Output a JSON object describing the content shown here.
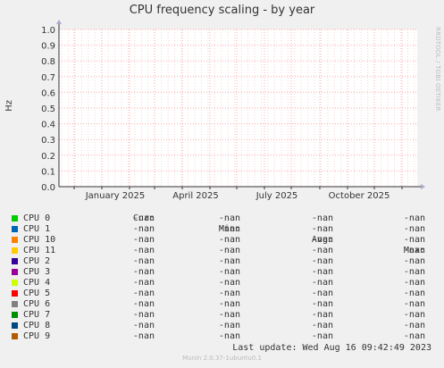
{
  "title": "CPU frequency scaling - by year",
  "side_text": "RRDTOOL / TOBI OETIKER",
  "colors": {
    "background": "#f0f0f0",
    "plot_bg": "#ffffff",
    "grid": "#ffaaaa",
    "axis": "#333333",
    "text": "#333333"
  },
  "chart_data": {
    "type": "line",
    "ylabel": "Hz",
    "xlabel": "",
    "ylim": [
      0,
      1
    ],
    "y_ticks": [
      0.0,
      0.1,
      0.2,
      0.3,
      0.4,
      0.5,
      0.6,
      0.7,
      0.8,
      0.9,
      1.0
    ],
    "y_tick_labels": [
      "0.0",
      "0.1",
      "0.2",
      "0.3",
      "0.4",
      "0.5",
      "0.6",
      "0.7",
      "0.8",
      "0.9",
      "1.0"
    ],
    "x_tick_labels": [
      "January 2025",
      "April 2025",
      "July 2025",
      "October 2025"
    ],
    "grid": true,
    "series": [
      {
        "name": "CPU 0",
        "color": "#00cc00",
        "values": []
      },
      {
        "name": "CPU 1",
        "color": "#0066b3",
        "values": []
      },
      {
        "name": "CPU 10",
        "color": "#ff8000",
        "values": []
      },
      {
        "name": "CPU 11",
        "color": "#ffcc00",
        "values": []
      },
      {
        "name": "CPU 2",
        "color": "#330099",
        "values": []
      },
      {
        "name": "CPU 3",
        "color": "#990099",
        "values": []
      },
      {
        "name": "CPU 4",
        "color": "#ccff00",
        "values": []
      },
      {
        "name": "CPU 5",
        "color": "#ff0000",
        "values": []
      },
      {
        "name": "CPU 6",
        "color": "#808080",
        "values": []
      },
      {
        "name": "CPU 7",
        "color": "#008f00",
        "values": []
      },
      {
        "name": "CPU 8",
        "color": "#00487d",
        "values": []
      },
      {
        "name": "CPU 9",
        "color": "#b35a00",
        "values": []
      }
    ]
  },
  "legend": {
    "headers": [
      "Cur:",
      "Min:",
      "Avg:",
      "Max:"
    ],
    "rows": [
      {
        "name": "CPU 0",
        "color": "#00cc00",
        "cur": "-nan",
        "min": "-nan",
        "avg": "-nan",
        "max": "-nan"
      },
      {
        "name": "CPU 1",
        "color": "#0066b3",
        "cur": "-nan",
        "min": "-nan",
        "avg": "-nan",
        "max": "-nan"
      },
      {
        "name": "CPU 10",
        "color": "#ff8000",
        "cur": "-nan",
        "min": "-nan",
        "avg": "-nan",
        "max": "-nan"
      },
      {
        "name": "CPU 11",
        "color": "#ffcc00",
        "cur": "-nan",
        "min": "-nan",
        "avg": "-nan",
        "max": "-nan"
      },
      {
        "name": "CPU 2",
        "color": "#330099",
        "cur": "-nan",
        "min": "-nan",
        "avg": "-nan",
        "max": "-nan"
      },
      {
        "name": "CPU 3",
        "color": "#990099",
        "cur": "-nan",
        "min": "-nan",
        "avg": "-nan",
        "max": "-nan"
      },
      {
        "name": "CPU 4",
        "color": "#ccff00",
        "cur": "-nan",
        "min": "-nan",
        "avg": "-nan",
        "max": "-nan"
      },
      {
        "name": "CPU 5",
        "color": "#ff0000",
        "cur": "-nan",
        "min": "-nan",
        "avg": "-nan",
        "max": "-nan"
      },
      {
        "name": "CPU 6",
        "color": "#808080",
        "cur": "-nan",
        "min": "-nan",
        "avg": "-nan",
        "max": "-nan"
      },
      {
        "name": "CPU 7",
        "color": "#008f00",
        "cur": "-nan",
        "min": "-nan",
        "avg": "-nan",
        "max": "-nan"
      },
      {
        "name": "CPU 8",
        "color": "#00487d",
        "cur": "-nan",
        "min": "-nan",
        "avg": "-nan",
        "max": "-nan"
      },
      {
        "name": "CPU 9",
        "color": "#b35a00",
        "cur": "-nan",
        "min": "-nan",
        "avg": "-nan",
        "max": "-nan"
      }
    ]
  },
  "last_update": "Last update: Wed Aug 16 09:42:49 2023",
  "footer": "Munin 2.0.37-1ubuntu0.1"
}
